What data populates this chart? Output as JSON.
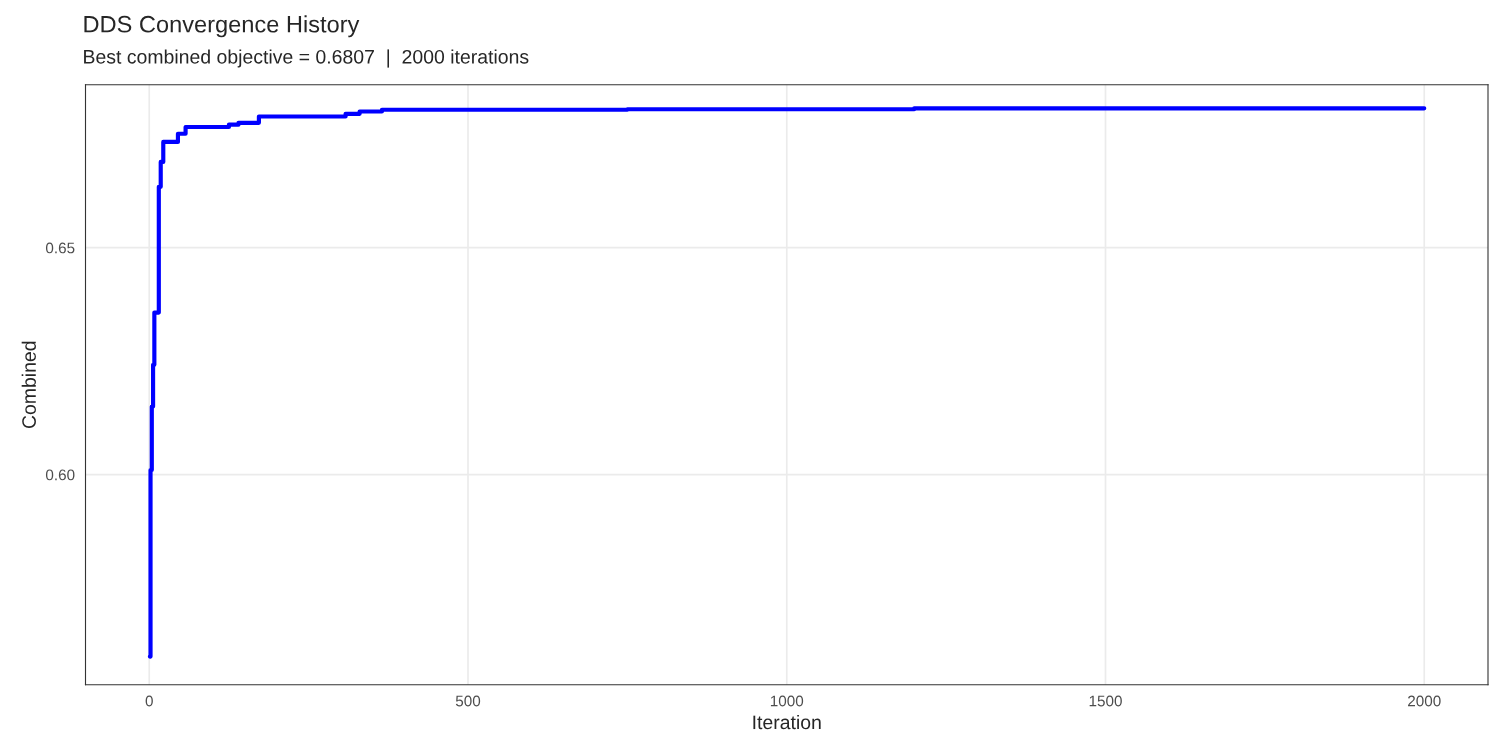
{
  "chart_data": {
    "type": "step",
    "title": "DDS Convergence History",
    "subtitle": "Best combined objective = 0.6807  |  2000 iterations",
    "xlabel": "Iteration",
    "ylabel": "Combined",
    "series": [
      {
        "color": "#0000ff",
        "x": [
          1,
          2,
          4,
          6,
          8,
          15,
          18,
          22,
          45,
          57,
          125,
          140,
          172,
          308,
          330,
          365,
          750,
          1200,
          2000
        ],
        "values": [
          0.5599,
          0.601,
          0.615,
          0.6242,
          0.6357,
          0.6634,
          0.6689,
          0.6733,
          0.6751,
          0.6766,
          0.6771,
          0.6775,
          0.6789,
          0.6795,
          0.68,
          0.6804,
          0.6805,
          0.6807,
          0.6807
        ]
      }
    ],
    "xlim": [
      -100,
      2100
    ],
    "xticks": [
      0,
      500,
      1000,
      1500,
      2000
    ],
    "ylim": [
      0.5537,
      0.6859
    ],
    "yticks": [
      {
        "value": 0.6,
        "label": "0.60"
      },
      {
        "value": 0.65,
        "label": "0.65"
      }
    ],
    "grid": true
  }
}
